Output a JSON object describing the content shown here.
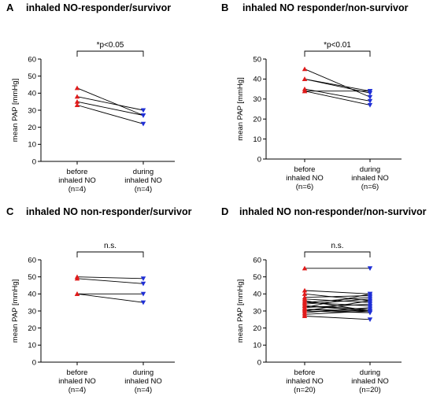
{
  "colors": {
    "before": "#e01b1b",
    "during": "#1f2fd6",
    "line": "#000000"
  },
  "chart_data": [
    {
      "type": "line",
      "panel": "A",
      "title": "inhaled NO-responder/survivor",
      "ylabel": "mean PAP [mmHg]",
      "ylim": [
        0,
        60
      ],
      "yticks": [
        "0",
        "10",
        "20",
        "30",
        "40",
        "50",
        "60"
      ],
      "categories": [
        {
          "lines": [
            "before",
            "inhaled NO",
            "(n=4)"
          ]
        },
        {
          "lines": [
            "during",
            "inhaled NO",
            "(n=4)"
          ]
        }
      ],
      "significance": "*p<0.05",
      "pairs": [
        [
          43,
          27
        ],
        [
          38,
          30
        ],
        [
          35,
          27
        ],
        [
          33,
          22
        ]
      ]
    },
    {
      "type": "line",
      "panel": "B",
      "title": "inhaled NO responder/non-survivor",
      "ylabel": "mean PAP [mmHg]",
      "ylim": [
        0,
        50
      ],
      "yticks": [
        "0",
        "10",
        "20",
        "30",
        "40",
        "50"
      ],
      "categories": [
        {
          "lines": [
            "before",
            "inhaled NO",
            "(n=6)"
          ]
        },
        {
          "lines": [
            "during",
            "inhaled NO",
            "(n=6)"
          ]
        }
      ],
      "significance": "*p<0.01",
      "pairs": [
        [
          45,
          31
        ],
        [
          40,
          34
        ],
        [
          40,
          33
        ],
        [
          35,
          29
        ],
        [
          34,
          34
        ],
        [
          34,
          27
        ]
      ]
    },
    {
      "type": "line",
      "panel": "C",
      "title": "inhaled NO non-responder/survivor",
      "ylabel": "mean PAP [mmHg]",
      "ylim": [
        0,
        60
      ],
      "yticks": [
        "0",
        "10",
        "20",
        "30",
        "40",
        "50",
        "60"
      ],
      "categories": [
        {
          "lines": [
            "before",
            "inhaled NO",
            "(n=4)"
          ]
        },
        {
          "lines": [
            "during",
            "inhaled NO",
            "(n=4)"
          ]
        }
      ],
      "significance": "n.s.",
      "pairs": [
        [
          50,
          49
        ],
        [
          49,
          46
        ],
        [
          40,
          40
        ],
        [
          40,
          35
        ]
      ]
    },
    {
      "type": "line",
      "panel": "D",
      "title": "inhaled NO non-responder/non-survivor",
      "ylabel": "mean PAP [mmHg]",
      "ylim": [
        0,
        60
      ],
      "yticks": [
        "0",
        "10",
        "20",
        "30",
        "40",
        "50",
        "60"
      ],
      "categories": [
        {
          "lines": [
            "before",
            "inhaled NO",
            "(n=20)"
          ]
        },
        {
          "lines": [
            "during",
            "inhaled NO",
            "(n=20)"
          ]
        }
      ],
      "significance": "n.s.",
      "pairs": [
        [
          55,
          55
        ],
        [
          42,
          40
        ],
        [
          40,
          36
        ],
        [
          38,
          39
        ],
        [
          37,
          35
        ],
        [
          36,
          30
        ],
        [
          35,
          38
        ],
        [
          35,
          33
        ],
        [
          34,
          37
        ],
        [
          33,
          30
        ],
        [
          33,
          31
        ],
        [
          32,
          40
        ],
        [
          32,
          34
        ],
        [
          31,
          29
        ],
        [
          31,
          30
        ],
        [
          30,
          36
        ],
        [
          30,
          29
        ],
        [
          29,
          32
        ],
        [
          28,
          30
        ],
        [
          27,
          25
        ]
      ]
    }
  ]
}
